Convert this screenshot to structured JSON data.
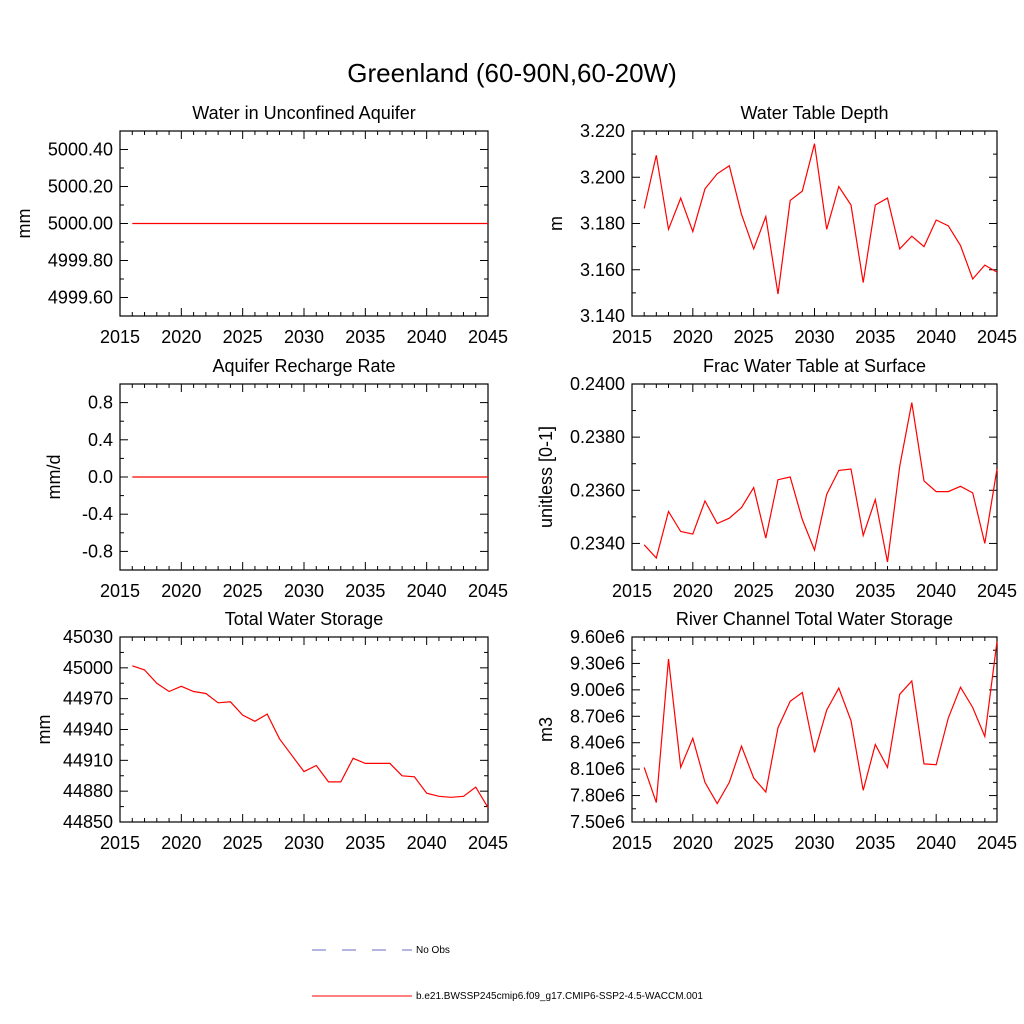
{
  "figure": {
    "title": "Greenland (60-90N,60-20W)"
  },
  "legend": {
    "items": [
      {
        "label": "No Obs",
        "color": "#6b6bc4",
        "style": "dashed"
      },
      {
        "label": "b.e21.BWSSP245cmip6.f09_g17.CMIP6-SSP2-4.5-WACCM.001",
        "color": "#ff0000",
        "style": "solid"
      }
    ]
  },
  "chart_data": [
    {
      "type": "line",
      "title": "Water in Unconfined Aquifer",
      "ylabel": "mm",
      "xlim": [
        2015,
        2045
      ],
      "ylim": [
        4999.5,
        5000.5
      ],
      "xticks": [
        2015,
        2020,
        2025,
        2030,
        2035,
        2040,
        2045
      ],
      "yticks": [
        4999.6,
        4999.8,
        5000.0,
        5000.2,
        5000.4
      ],
      "ytick_labels": [
        "4999.60",
        "4999.80",
        "5000.00",
        "5000.20",
        "5000.40"
      ],
      "series": [
        {
          "name": "b.e21.BWSSP245cmip6.f09_g17.CMIP6-SSP2-4.5-WACCM.001",
          "color": "#ff0000",
          "x": [
            2016,
            2045
          ],
          "y": [
            5000.0,
            5000.0
          ]
        }
      ]
    },
    {
      "type": "line",
      "title": "Water Table Depth",
      "ylabel": "m",
      "xlim": [
        2015,
        2045
      ],
      "ylim": [
        3.14,
        3.22
      ],
      "xticks": [
        2015,
        2020,
        2025,
        2030,
        2035,
        2040,
        2045
      ],
      "yticks": [
        3.14,
        3.16,
        3.18,
        3.2,
        3.22
      ],
      "ytick_labels": [
        "3.140",
        "3.160",
        "3.180",
        "3.200",
        "3.220"
      ],
      "series": [
        {
          "name": "b.e21.BWSSP245cmip6.f09_g17.CMIP6-SSP2-4.5-WACCM.001",
          "color": "#ff0000",
          "x": [
            2016,
            2017,
            2018,
            2019,
            2020,
            2021,
            2022,
            2023,
            2024,
            2025,
            2026,
            2027,
            2028,
            2029,
            2030,
            2031,
            2032,
            2033,
            2034,
            2035,
            2036,
            2037,
            2038,
            2039,
            2040,
            2041,
            2042,
            2043,
            2044,
            2045
          ],
          "y": [
            3.1865,
            3.2095,
            3.1775,
            3.191,
            3.1765,
            3.195,
            3.2015,
            3.205,
            3.184,
            3.169,
            3.183,
            3.1495,
            3.19,
            3.194,
            3.2145,
            3.1775,
            3.196,
            3.188,
            3.1545,
            3.188,
            3.191,
            3.169,
            3.1745,
            3.17,
            3.1815,
            3.179,
            3.1705,
            3.156,
            3.162,
            3.159
          ]
        }
      ]
    },
    {
      "type": "line",
      "title": "Aquifer Recharge Rate",
      "ylabel": "mm/d",
      "xlim": [
        2015,
        2045
      ],
      "ylim": [
        -1.0,
        1.0
      ],
      "xticks": [
        2015,
        2020,
        2025,
        2030,
        2035,
        2040,
        2045
      ],
      "yticks": [
        -0.8,
        -0.4,
        0.0,
        0.4,
        0.8
      ],
      "ytick_labels": [
        "-0.8",
        "-0.4",
        "0.0",
        "0.4",
        "0.8"
      ],
      "series": [
        {
          "name": "b.e21.BWSSP245cmip6.f09_g17.CMIP6-SSP2-4.5-WACCM.001",
          "color": "#ff0000",
          "x": [
            2016,
            2045
          ],
          "y": [
            0.0,
            0.0
          ]
        }
      ]
    },
    {
      "type": "line",
      "title": "Frac Water Table at Surface",
      "ylabel": "unitless [0-1]",
      "xlim": [
        2015,
        2045
      ],
      "ylim": [
        0.233,
        0.24
      ],
      "xticks": [
        2015,
        2020,
        2025,
        2030,
        2035,
        2040,
        2045
      ],
      "yticks": [
        0.234,
        0.236,
        0.238,
        0.24
      ],
      "ytick_labels": [
        "0.2340",
        "0.2360",
        "0.2380",
        "0.2400"
      ],
      "series": [
        {
          "name": "b.e21.BWSSP245cmip6.f09_g17.CMIP6-SSP2-4.5-WACCM.001",
          "color": "#ff0000",
          "x": [
            2016,
            2017,
            2018,
            2019,
            2020,
            2021,
            2022,
            2023,
            2024,
            2025,
            2026,
            2027,
            2028,
            2029,
            2030,
            2031,
            2032,
            2033,
            2034,
            2035,
            2036,
            2037,
            2038,
            2039,
            2040,
            2041,
            2042,
            2043,
            2044,
            2045
          ],
          "y": [
            0.23395,
            0.23345,
            0.2352,
            0.23445,
            0.23435,
            0.2356,
            0.23475,
            0.23495,
            0.23535,
            0.2361,
            0.2342,
            0.2364,
            0.2365,
            0.2349,
            0.23375,
            0.23585,
            0.23675,
            0.2368,
            0.2343,
            0.23565,
            0.2333,
            0.2369,
            0.2393,
            0.23635,
            0.23595,
            0.23595,
            0.23615,
            0.2359,
            0.234,
            0.2368
          ]
        }
      ]
    },
    {
      "type": "line",
      "title": "Total Water Storage",
      "ylabel": "mm",
      "xlim": [
        2015,
        2045
      ],
      "ylim": [
        44850,
        45030
      ],
      "xticks": [
        2015,
        2020,
        2025,
        2030,
        2035,
        2040,
        2045
      ],
      "yticks": [
        44850,
        44880,
        44910,
        44940,
        44970,
        45000,
        45030
      ],
      "ytick_labels": [
        "44850",
        "44880",
        "44910",
        "44940",
        "44970",
        "45000",
        "45030"
      ],
      "series": [
        {
          "name": "b.e21.BWSSP245cmip6.f09_g17.CMIP6-SSP2-4.5-WACCM.001",
          "color": "#ff0000",
          "x": [
            2016,
            2017,
            2018,
            2019,
            2020,
            2021,
            2022,
            2023,
            2024,
            2025,
            2026,
            2027,
            2028,
            2029,
            2030,
            2031,
            2032,
            2033,
            2034,
            2035,
            2036,
            2037,
            2038,
            2039,
            2040,
            2041,
            2042,
            2043,
            2044,
            2045
          ],
          "y": [
            45002,
            44998,
            44985,
            44977,
            44982,
            44977,
            44975,
            44966,
            44967,
            44954,
            44948,
            44955,
            44931,
            44915,
            44899,
            44905,
            44889,
            44889,
            44912,
            44907,
            44907,
            44907,
            44895,
            44894,
            44878,
            44875,
            44874,
            44875,
            44884,
            44864
          ]
        }
      ]
    },
    {
      "type": "line",
      "title": "River Channel Total Water Storage",
      "ylabel": "m3",
      "xlim": [
        2015,
        2045
      ],
      "ylim": [
        7500000.0,
        9600000.0
      ],
      "xticks": [
        2015,
        2020,
        2025,
        2030,
        2035,
        2040,
        2045
      ],
      "yticks": [
        7500000.0,
        7800000.0,
        8100000.0,
        8400000.0,
        8700000.0,
        9000000.0,
        9300000.0,
        9600000.0
      ],
      "ytick_labels": [
        "7.50e6",
        "7.80e6",
        "8.10e6",
        "8.40e6",
        "8.70e6",
        "9.00e6",
        "9.30e6",
        "9.60e6"
      ],
      "series": [
        {
          "name": "b.e21.BWSSP245cmip6.f09_g17.CMIP6-SSP2-4.5-WACCM.001",
          "color": "#ff0000",
          "x": [
            2016,
            2017,
            2018,
            2019,
            2020,
            2021,
            2022,
            2023,
            2024,
            2025,
            2026,
            2027,
            2028,
            2029,
            2030,
            2031,
            2032,
            2033,
            2034,
            2035,
            2036,
            2037,
            2038,
            2039,
            2040,
            2041,
            2042,
            2043,
            2044,
            2045
          ],
          "y": [
            8120000.0,
            7720000.0,
            9350000.0,
            8120000.0,
            8450000.0,
            7950000.0,
            7710000.0,
            7950000.0,
            8360000.0,
            8000000.0,
            7840000.0,
            8570000.0,
            8870000.0,
            8970000.0,
            8290000.0,
            8770000.0,
            9020000.0,
            8650000.0,
            7860000.0,
            8380000.0,
            8120000.0,
            8950000.0,
            9100000.0,
            8160000.0,
            8150000.0,
            8680000.0,
            9030000.0,
            8800000.0,
            8470000.0,
            9550000.0
          ]
        }
      ]
    }
  ]
}
